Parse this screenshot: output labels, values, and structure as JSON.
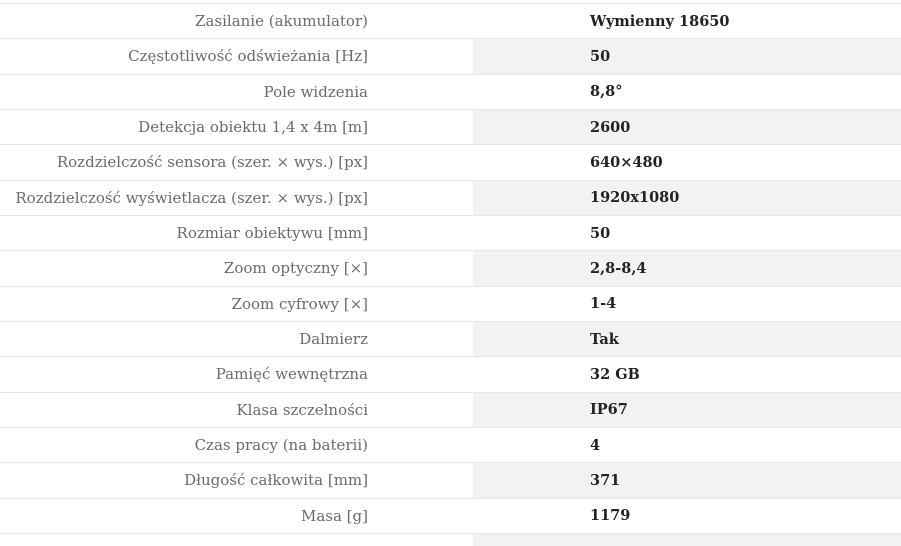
{
  "colors": {
    "row_alt_bg": "#f2f2f2",
    "border": "#e7e7e7",
    "label_text": "#6a6a6a",
    "value_text": "#222222",
    "page_bg": "#ffffff"
  },
  "spec_table": {
    "rows": [
      {
        "label": "Zasilanie (akumulator)",
        "value": "Wymienny 18650"
      },
      {
        "label": "Częstotliwość odświeżania [Hz]",
        "value": "50"
      },
      {
        "label": "Pole widzenia",
        "value": "8,8°"
      },
      {
        "label": "Detekcja obiektu 1,4 x 4m [m]",
        "value": "2600"
      },
      {
        "label": "Rozdzielczość sensora (szer. × wys.) [px]",
        "value": "640×480"
      },
      {
        "label": "Rozdzielczość wyświetlacza (szer. × wys.) [px]",
        "value": "1920x1080"
      },
      {
        "label": "Rozmiar obiektywu [mm]",
        "value": "50"
      },
      {
        "label": "Zoom optyczny [×]",
        "value": "2,8-8,4"
      },
      {
        "label": "Zoom cyfrowy [×]",
        "value": "1-4"
      },
      {
        "label": "Dalmierz",
        "value": "Tak"
      },
      {
        "label": "Pamięć wewnętrzna",
        "value": "32 GB"
      },
      {
        "label": "Klasa szczelności",
        "value": "IP67"
      },
      {
        "label": "Czas pracy (na baterii)",
        "value": "4"
      },
      {
        "label": "Długość całkowita [mm]",
        "value": "371"
      },
      {
        "label": "Masa [g]",
        "value": "1179"
      }
    ]
  }
}
